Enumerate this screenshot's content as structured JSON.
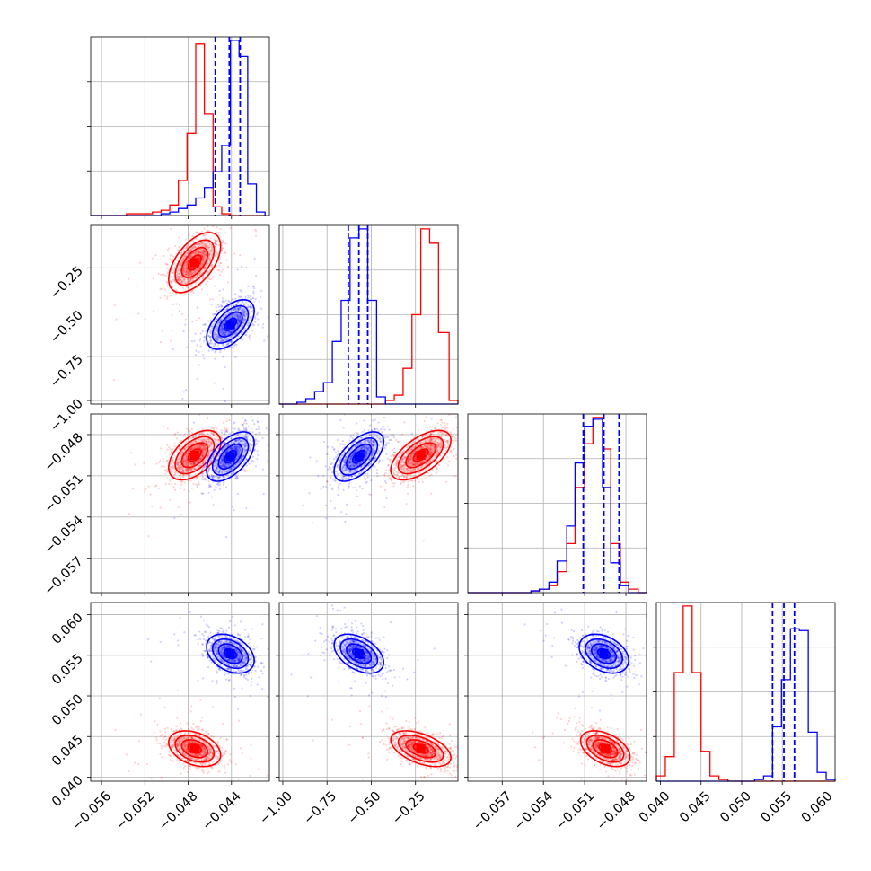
{
  "colors": {
    "series_a": "#ff0000",
    "series_b": "#0000ff",
    "grid": "#b0b0b0"
  },
  "chart_data": {
    "type": "corner",
    "grid": true,
    "legend": "none",
    "parameters": [
      {
        "range": [
          -0.057,
          -0.0405
        ],
        "ticks": [
          -0.056,
          -0.052,
          -0.048,
          -0.044
        ],
        "tick_labels": [
          "−0.056",
          "−0.052",
          "−0.048",
          "−0.044"
        ]
      },
      {
        "range": [
          -1.02,
          -0.01
        ],
        "ticks": [
          -1.0,
          -0.75,
          -0.5,
          -0.25
        ],
        "tick_labels": [
          "−1.00",
          "−0.75",
          "−0.50",
          "−0.25"
        ]
      },
      {
        "range": [
          -0.0595,
          -0.0465
        ],
        "ticks": [
          -0.057,
          -0.054,
          -0.051,
          -0.048
        ],
        "tick_labels": [
          "−0.057",
          "−0.054",
          "−0.051",
          "−0.048"
        ]
      },
      {
        "range": [
          0.0395,
          0.0615
        ],
        "ticks": [
          0.04,
          0.045,
          0.05,
          0.055,
          0.06
        ],
        "tick_labels": [
          "0.040",
          "0.045",
          "0.050",
          "0.055",
          "0.060"
        ]
      }
    ],
    "series": [
      {
        "color": "series_a",
        "mean": [
          -0.0474,
          -0.22,
          -0.0495,
          0.0435
        ],
        "sd": [
          0.0012,
          0.085,
          0.0009,
          0.0011
        ]
      },
      {
        "color": "series_b",
        "mean": [
          -0.0441,
          -0.57,
          -0.0496,
          0.0552
        ],
        "sd": [
          0.0011,
          0.07,
          0.0009,
          0.0012
        ]
      }
    ],
    "quantile_lines": {
      "series": "series_b",
      "values": [
        [
          -0.0455,
          -0.0442,
          -0.0432
        ],
        [
          -0.63,
          -0.57,
          -0.52
        ],
        [
          -0.0511,
          -0.0496,
          -0.0485
        ],
        [
          0.0538,
          0.0552,
          0.0565
        ]
      ]
    },
    "histograms": [
      {
        "bin_edges": [
          -0.057,
          -0.0561,
          -0.0553,
          -0.0545,
          -0.0537,
          -0.0529,
          -0.0521,
          -0.0513,
          -0.0505,
          -0.0497,
          -0.0489,
          -0.0481,
          -0.0473,
          -0.0465,
          -0.0457,
          -0.0449,
          -0.0441,
          -0.0433,
          -0.0425,
          -0.0417,
          -0.0409
        ],
        "counts": [
          [
            0,
            0,
            0,
            0,
            0.01,
            0.01,
            0.01,
            0.02,
            0.03,
            0.06,
            0.2,
            0.47,
            0.98,
            0.58,
            0.05,
            0.01,
            0,
            0,
            0,
            0
          ],
          [
            0,
            0,
            0,
            0,
            0,
            0,
            0,
            0,
            0.01,
            0.02,
            0.04,
            0.06,
            0.1,
            0.16,
            0.25,
            0.4,
            1.0,
            0.91,
            0.18,
            0.02
          ]
        ]
      },
      {
        "bin_edges": [
          -1.02,
          -0.97,
          -0.92,
          -0.87,
          -0.82,
          -0.77,
          -0.72,
          -0.67,
          -0.62,
          -0.57,
          -0.52,
          -0.47,
          -0.42,
          -0.37,
          -0.32,
          -0.27,
          -0.22,
          -0.17,
          -0.12,
          -0.06,
          -0.01
        ],
        "counts": [
          [
            0,
            0,
            0,
            0,
            0,
            0,
            0,
            0,
            0,
            0,
            0,
            0,
            0.02,
            0.05,
            0.2,
            0.5,
            0.98,
            0.9,
            0.4,
            0.02
          ],
          [
            0,
            0,
            0.01,
            0.03,
            0.07,
            0.12,
            0.35,
            0.58,
            0.93,
            0.98,
            0.58,
            0.04,
            0,
            0,
            0,
            0,
            0,
            0,
            0,
            0
          ]
        ]
      },
      {
        "bin_edges": [
          -0.0595,
          -0.0588,
          -0.0582,
          -0.0575,
          -0.0569,
          -0.0562,
          -0.0556,
          -0.0549,
          -0.0543,
          -0.0536,
          -0.053,
          -0.0523,
          -0.0517,
          -0.051,
          -0.0504,
          -0.0497,
          -0.0491,
          -0.0484,
          -0.0478,
          -0.0471,
          -0.0465
        ],
        "counts": [
          [
            0,
            0,
            0,
            0,
            0,
            0,
            0,
            0.01,
            0.02,
            0.04,
            0.12,
            0.28,
            0.6,
            0.85,
            1.0,
            0.82,
            0.28,
            0.06,
            0.02,
            0
          ],
          [
            0,
            0,
            0,
            0,
            0,
            0,
            0,
            0.01,
            0.02,
            0.06,
            0.18,
            0.38,
            0.74,
            0.95,
            0.99,
            0.6,
            0.17,
            0.04,
            0,
            0
          ]
        ]
      },
      {
        "bin_edges": [
          0.0395,
          0.0406,
          0.0417,
          0.0428,
          0.0439,
          0.045,
          0.0461,
          0.0472,
          0.0483,
          0.0494,
          0.0505,
          0.0516,
          0.0527,
          0.0538,
          0.0549,
          0.056,
          0.0571,
          0.0582,
          0.0593,
          0.0604,
          0.0615
        ],
        "counts": [
          [
            0.03,
            0.14,
            0.62,
            1.0,
            0.62,
            0.17,
            0.03,
            0.01,
            0,
            0,
            0,
            0,
            0,
            0,
            0,
            0,
            0,
            0,
            0,
            0
          ],
          [
            0,
            0,
            0,
            0,
            0,
            0,
            0,
            0,
            0,
            0,
            0,
            0.01,
            0.03,
            0.31,
            0.58,
            0.87,
            0.86,
            0.28,
            0.05,
            0.01
          ]
        ]
      }
    ],
    "pairs": [
      {
        "x_param": 0,
        "y_param": 1,
        "rho": [
          0.55,
          0.55
        ]
      },
      {
        "x_param": 0,
        "y_param": 2,
        "rho": [
          0.5,
          0.55
        ]
      },
      {
        "x_param": 1,
        "y_param": 2,
        "rho": [
          0.6,
          0.6
        ]
      },
      {
        "x_param": 0,
        "y_param": 3,
        "rho": [
          -0.35,
          -0.35
        ]
      },
      {
        "x_param": 1,
        "y_param": 3,
        "rho": [
          -0.5,
          -0.45
        ]
      },
      {
        "x_param": 2,
        "y_param": 3,
        "rho": [
          -0.45,
          -0.35
        ]
      }
    ]
  }
}
